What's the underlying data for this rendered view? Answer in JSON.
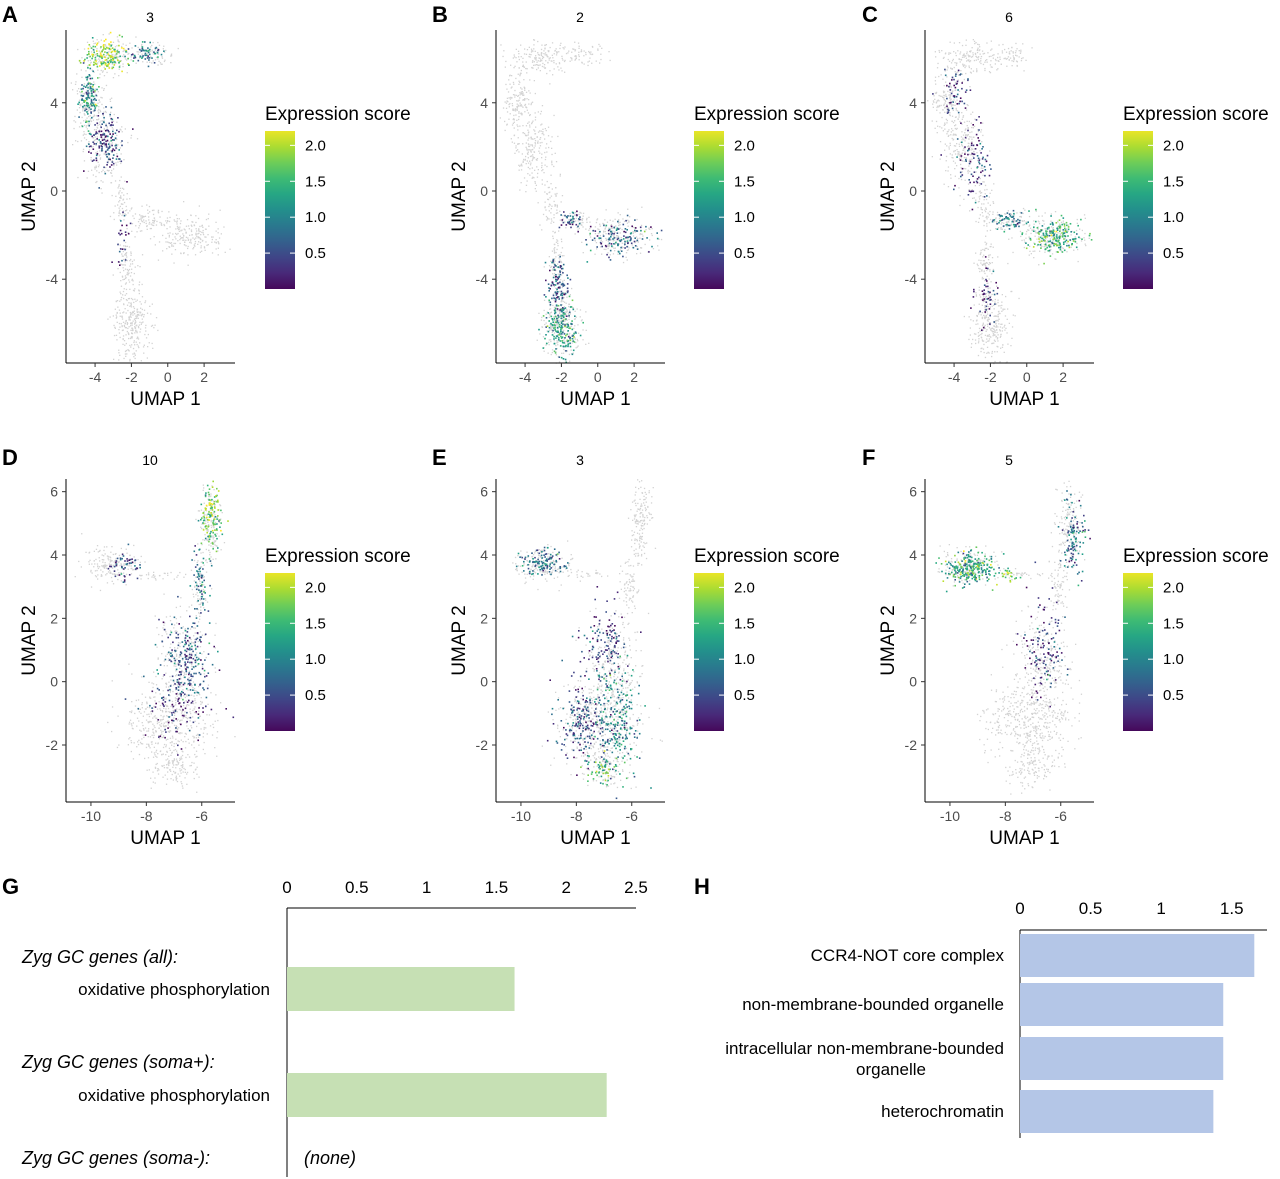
{
  "chart_data": [
    {
      "panel": "A",
      "type": "scatter",
      "title": "3",
      "xlabel": "UMAP 1",
      "ylabel": "UMAP 2",
      "xlim": [
        -5.6,
        3.7
      ],
      "ylim": [
        -7.8,
        7.3
      ],
      "xticks": [
        -4,
        -2,
        0,
        2
      ],
      "yticks": [
        -4,
        0,
        4
      ],
      "xtick_labels": [
        "-4",
        "-2",
        "0",
        "2"
      ],
      "ytick_labels": [
        "-4",
        "0",
        "4"
      ],
      "legend_title": "Expression score",
      "legend_ticks": [
        "0.5",
        "1.0",
        "1.5",
        "2.0"
      ],
      "color_range": [
        0,
        2.2
      ],
      "shape": "branch_a",
      "hotspots": [
        {
          "x": -3.5,
          "y": 6.2,
          "sx": 0.9,
          "sy": 0.5,
          "v": 1.8,
          "n": 150
        },
        {
          "x": -1.2,
          "y": 6.3,
          "sx": 0.7,
          "sy": 0.3,
          "v": 0.9,
          "n": 60
        },
        {
          "x": -4.4,
          "y": 4.2,
          "sx": 0.4,
          "sy": 0.9,
          "v": 1.1,
          "n": 120
        },
        {
          "x": -3.5,
          "y": 2.2,
          "sx": 0.7,
          "sy": 1.0,
          "v": 0.5,
          "n": 140
        },
        {
          "x": -2.5,
          "y": -2.0,
          "sx": 0.3,
          "sy": 1.2,
          "v": 0.3,
          "n": 25
        }
      ]
    },
    {
      "panel": "B",
      "type": "scatter",
      "title": "2",
      "xlabel": "UMAP 1",
      "ylabel": "UMAP 2",
      "xlim": [
        -5.6,
        3.7
      ],
      "ylim": [
        -7.8,
        7.3
      ],
      "xticks": [
        -4,
        -2,
        0,
        2
      ],
      "yticks": [
        -4,
        0,
        4
      ],
      "xtick_labels": [
        "-4",
        "-2",
        "0",
        "2"
      ],
      "ytick_labels": [
        "-4",
        "0",
        "4"
      ],
      "legend_title": "Expression score",
      "legend_ticks": [
        "0.5",
        "1.0",
        "1.5",
        "2.0"
      ],
      "color_range": [
        0,
        2.2
      ],
      "shape": "branch_a",
      "hotspots": [
        {
          "x": -2.0,
          "y": -6.2,
          "sx": 0.6,
          "sy": 0.9,
          "v": 1.2,
          "n": 170
        },
        {
          "x": -2.3,
          "y": -4.2,
          "sx": 0.4,
          "sy": 0.9,
          "v": 0.6,
          "n": 110
        },
        {
          "x": 1.2,
          "y": -2.1,
          "sx": 1.2,
          "sy": 0.6,
          "v": 0.7,
          "n": 120
        },
        {
          "x": -1.5,
          "y": -1.3,
          "sx": 0.6,
          "sy": 0.3,
          "v": 0.5,
          "n": 40
        }
      ]
    },
    {
      "panel": "C",
      "type": "scatter",
      "title": "6",
      "xlabel": "UMAP 1",
      "ylabel": "UMAP 2",
      "xlim": [
        -5.6,
        3.7
      ],
      "ylim": [
        -7.8,
        7.3
      ],
      "xticks": [
        -4,
        -2,
        0,
        2
      ],
      "yticks": [
        -4,
        0,
        4
      ],
      "xtick_labels": [
        "-4",
        "-2",
        "0",
        "2"
      ],
      "ytick_labels": [
        "-4",
        "0",
        "4"
      ],
      "legend_title": "Expression score",
      "legend_ticks": [
        "0.5",
        "1.0",
        "1.5",
        "2.0"
      ],
      "color_range": [
        0,
        2.2
      ],
      "shape": "branch_a",
      "hotspots": [
        {
          "x": 1.4,
          "y": -2.0,
          "sx": 1.1,
          "sy": 0.6,
          "v": 1.4,
          "n": 190
        },
        {
          "x": -1.0,
          "y": -1.3,
          "sx": 0.6,
          "sy": 0.3,
          "v": 0.8,
          "n": 50
        },
        {
          "x": -3.0,
          "y": 1.5,
          "sx": 0.8,
          "sy": 1.3,
          "v": 0.4,
          "n": 90
        },
        {
          "x": -4.0,
          "y": 4.6,
          "sx": 0.6,
          "sy": 0.7,
          "v": 0.4,
          "n": 50
        },
        {
          "x": -2.2,
          "y": -4.6,
          "sx": 0.5,
          "sy": 1.2,
          "v": 0.3,
          "n": 45
        }
      ]
    },
    {
      "panel": "D",
      "type": "scatter",
      "title": "10",
      "xlabel": "UMAP 1",
      "ylabel": "UMAP 2",
      "xlim": [
        -10.9,
        -4.8
      ],
      "ylim": [
        -3.8,
        6.4
      ],
      "xticks": [
        -10,
        -8,
        -6
      ],
      "yticks": [
        -2,
        0,
        2,
        4,
        6
      ],
      "xtick_labels": [
        "-10",
        "-8",
        "-6"
      ],
      "ytick_labels": [
        "-2",
        "0",
        "2",
        "4",
        "6"
      ],
      "legend_title": "Expression score",
      "legend_ticks": [
        "0.5",
        "1.0",
        "1.5",
        "2.0"
      ],
      "color_range": [
        0,
        2.2
      ],
      "shape": "branch_d",
      "hotspots": [
        {
          "x": -5.7,
          "y": 5.2,
          "sx": 0.25,
          "sy": 0.7,
          "v": 1.7,
          "n": 130
        },
        {
          "x": -6.1,
          "y": 3.2,
          "sx": 0.25,
          "sy": 0.7,
          "v": 0.9,
          "n": 60
        },
        {
          "x": -6.6,
          "y": 0.6,
          "sx": 0.6,
          "sy": 1.0,
          "v": 0.6,
          "n": 220
        },
        {
          "x": -8.8,
          "y": 3.7,
          "sx": 0.4,
          "sy": 0.3,
          "v": 0.5,
          "n": 50
        },
        {
          "x": -7.0,
          "y": -1.0,
          "sx": 0.9,
          "sy": 0.7,
          "v": 0.3,
          "n": 70
        }
      ]
    },
    {
      "panel": "E",
      "type": "scatter",
      "title": "3",
      "xlabel": "UMAP 1",
      "ylabel": "UMAP 2",
      "xlim": [
        -10.9,
        -4.8
      ],
      "ylim": [
        -3.8,
        6.4
      ],
      "xticks": [
        -10,
        -8,
        -6
      ],
      "yticks": [
        -2,
        0,
        2,
        4,
        6
      ],
      "xtick_labels": [
        "-10",
        "-8",
        "-6"
      ],
      "ytick_labels": [
        "-2",
        "0",
        "2",
        "4",
        "6"
      ],
      "legend_title": "Expression score",
      "legend_ticks": [
        "0.5",
        "1.0",
        "1.5",
        "2.0"
      ],
      "color_range": [
        0,
        2.2
      ],
      "shape": "branch_d",
      "hotspots": [
        {
          "x": -9.2,
          "y": 3.8,
          "sx": 0.6,
          "sy": 0.3,
          "v": 0.8,
          "n": 110
        },
        {
          "x": -6.6,
          "y": -1.2,
          "sx": 0.6,
          "sy": 1.3,
          "v": 1.0,
          "n": 230
        },
        {
          "x": -7.8,
          "y": -1.3,
          "sx": 0.6,
          "sy": 0.8,
          "v": 0.6,
          "n": 170
        },
        {
          "x": -7.0,
          "y": 1.2,
          "sx": 0.6,
          "sy": 1.0,
          "v": 0.5,
          "n": 120
        },
        {
          "x": -7.1,
          "y": -2.8,
          "sx": 0.4,
          "sy": 0.3,
          "v": 1.6,
          "n": 50
        }
      ]
    },
    {
      "panel": "F",
      "type": "scatter",
      "title": "5",
      "xlabel": "UMAP 1",
      "ylabel": "UMAP 2",
      "xlim": [
        -10.9,
        -4.8
      ],
      "ylim": [
        -3.8,
        6.4
      ],
      "xticks": [
        -10,
        -8,
        -6
      ],
      "yticks": [
        -2,
        0,
        2,
        4,
        6
      ],
      "xtick_labels": [
        "-10",
        "-8",
        "-6"
      ],
      "ytick_labels": [
        "-2",
        "0",
        "2",
        "4",
        "6"
      ],
      "legend_title": "Expression score",
      "legend_ticks": [
        "0.5",
        "1.0",
        "1.5",
        "2.0"
      ],
      "color_range": [
        0,
        2.2
      ],
      "shape": "branch_d",
      "hotspots": [
        {
          "x": -9.3,
          "y": 3.6,
          "sx": 0.65,
          "sy": 0.35,
          "v": 1.3,
          "n": 240
        },
        {
          "x": -7.9,
          "y": 3.4,
          "sx": 0.3,
          "sy": 0.15,
          "v": 1.7,
          "n": 20
        },
        {
          "x": -5.6,
          "y": 4.6,
          "sx": 0.3,
          "sy": 1.0,
          "v": 0.8,
          "n": 110
        },
        {
          "x": -6.6,
          "y": 1.0,
          "sx": 0.5,
          "sy": 1.1,
          "v": 0.4,
          "n": 120
        }
      ]
    },
    {
      "panel": "G",
      "type": "bar",
      "orientation": "horizontal",
      "xlim": [
        0,
        2.5
      ],
      "xticks": [
        0,
        0.5,
        1,
        1.5,
        2,
        2.5
      ],
      "xtick_labels": [
        "0",
        "0.5",
        "1",
        "1.5",
        "2",
        "2.5"
      ],
      "groups": [
        {
          "label": "Zyg GC genes (all):",
          "bars": [
            {
              "label": "oxidative phosphorylation",
              "value": 1.63
            }
          ]
        },
        {
          "label": "Zyg GC genes (soma+):",
          "bars": [
            {
              "label": "oxidative phosphorylation",
              "value": 2.29
            }
          ]
        },
        {
          "label": "Zyg GC genes (soma-):",
          "bars": [],
          "note": "(none)"
        }
      ],
      "bar_color": "#c6e0b4"
    },
    {
      "panel": "H",
      "type": "bar",
      "orientation": "horizontal",
      "xlim": [
        0,
        1.75
      ],
      "xticks": [
        0,
        0.5,
        1,
        1.5
      ],
      "xtick_labels": [
        "0",
        "0.5",
        "1",
        "1.5"
      ],
      "categories": [
        "CCR4-NOT core complex",
        "non-membrane-bounded organelle",
        "intracellular non-membrane-bounded|organelle",
        "heterochromatin"
      ],
      "values": [
        1.66,
        1.44,
        1.44,
        1.37
      ],
      "bar_color": "#b4c6e7"
    }
  ]
}
